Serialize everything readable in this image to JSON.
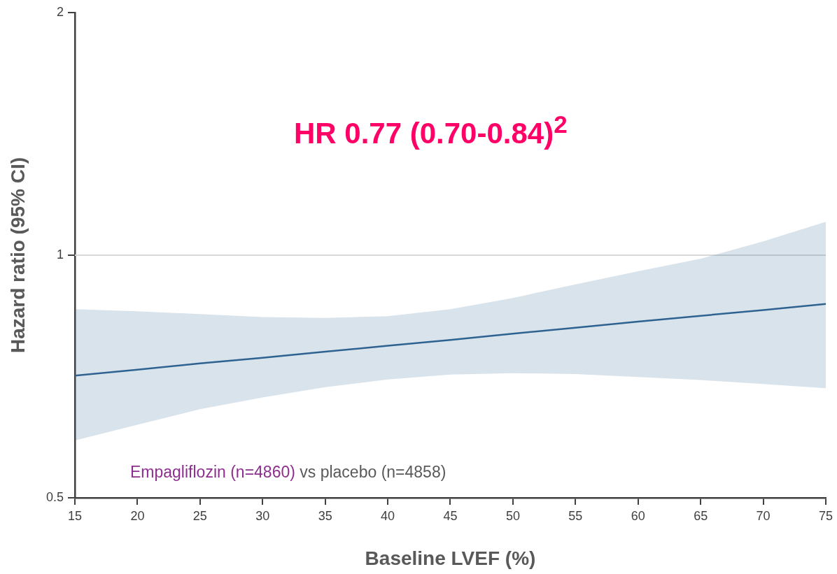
{
  "chart_data": {
    "type": "line",
    "xlabel": "Baseline LVEF (%)",
    "ylabel": "Hazard ratio (95% CI)",
    "annotations": [
      "HR 0.77 (0.70-0.84)$^{2}$",
      "Empagliflozin (n=4860)",
      "vs placebo (n=4858)"
    ],
    "x": [
      15,
      20,
      25,
      30,
      35,
      40,
      45,
      50,
      55,
      60,
      65,
      70,
      75
    ],
    "series": [
      {
        "color": "#2e6391",
        "values": [
          0.709,
          0.721,
          0.734,
          0.746,
          0.759,
          0.772,
          0.785,
          0.799,
          0.813,
          0.827,
          0.841,
          0.855,
          0.87
        ],
        "lower": [
          0.589,
          0.616,
          0.644,
          0.666,
          0.686,
          0.701,
          0.711,
          0.714,
          0.712,
          0.706,
          0.7,
          0.692,
          0.684
        ],
        "upper": [
          0.857,
          0.852,
          0.845,
          0.838,
          0.836,
          0.84,
          0.857,
          0.885,
          0.92,
          0.955,
          0.99,
          1.04,
          1.1
        ]
      }
    ],
    "xlim": [
      15,
      75
    ],
    "xticks": [
      15,
      20,
      25,
      30,
      35,
      40,
      45,
      50,
      55,
      60,
      65,
      70,
      75
    ],
    "ylim": [
      0.5,
      2
    ],
    "yticks": [
      0.5,
      1,
      2
    ],
    "log": true,
    "grid": false,
    "legend": false,
    "marker": "none",
    "line_style": "solid",
    "ref_lines": [
      {
        "axis": "y",
        "value": 1,
        "color": "#d9d9d9"
      }
    ]
  }
}
